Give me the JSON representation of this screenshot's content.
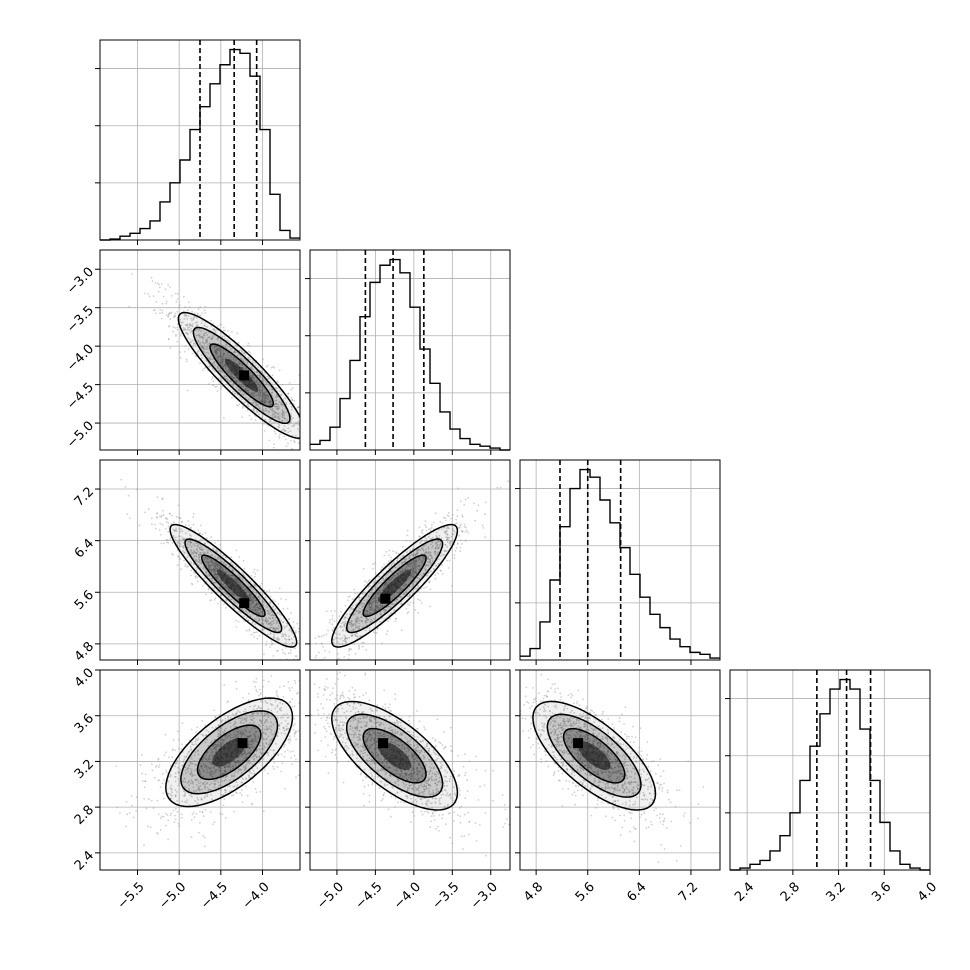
{
  "chart_data": {
    "type": "corner",
    "dimensions": 4,
    "grid": true,
    "colors": {
      "ink": "#000000",
      "grid": "#b0b0b0",
      "density": "#000000",
      "points": "#9a9a9a"
    },
    "params": [
      {
        "range": [
          -5.95,
          -3.55
        ],
        "ticks": [
          -5.5,
          -5.0,
          -4.5,
          -4.0
        ],
        "tick_labels": [
          "−5.5",
          "−5.0",
          "−4.5",
          "−4.0"
        ],
        "quantiles": [
          -4.75,
          -4.34,
          -4.07
        ],
        "hist_max": 1.0,
        "hist": [
          0.0,
          0.005,
          0.02,
          0.035,
          0.06,
          0.1,
          0.2,
          0.3,
          0.42,
          0.58,
          0.7,
          0.82,
          0.92,
          1.0,
          0.98,
          0.86,
          0.58,
          0.24,
          0.05,
          0.01
        ]
      },
      {
        "range": [
          -5.35,
          -2.75
        ],
        "ticks": [
          -5.0,
          -4.5,
          -4.0,
          -3.5,
          -3.0
        ],
        "tick_labels": [
          "−5.0",
          "−4.5",
          "−4.0",
          "−3.5",
          "−3.0"
        ],
        "quantiles": [
          -4.63,
          -4.27,
          -3.87
        ],
        "hist_max": 1.0,
        "hist": [
          0.03,
          0.05,
          0.12,
          0.27,
          0.47,
          0.7,
          0.88,
          0.97,
          1.0,
          0.93,
          0.75,
          0.53,
          0.35,
          0.2,
          0.11,
          0.06,
          0.03,
          0.02,
          0.01,
          0.0
        ]
      },
      {
        "range": [
          4.55,
          7.65
        ],
        "ticks": [
          4.8,
          5.6,
          6.4,
          7.2
        ],
        "tick_labels": [
          "4.8",
          "5.6",
          "6.4",
          "7.2"
        ],
        "quantiles": [
          5.17,
          5.6,
          6.11
        ],
        "hist_max": 1.0,
        "hist": [
          0.02,
          0.06,
          0.2,
          0.42,
          0.7,
          0.9,
          1.0,
          0.96,
          0.84,
          0.72,
          0.59,
          0.45,
          0.33,
          0.24,
          0.17,
          0.11,
          0.07,
          0.04,
          0.03,
          0.01
        ]
      },
      {
        "range": [
          2.25,
          4.0
        ],
        "ticks": [
          2.4,
          2.8,
          3.2,
          3.6,
          4.0
        ],
        "tick_labels": [
          "2.4",
          "2.8",
          "3.2",
          "3.6",
          "4.0"
        ],
        "quantiles": [
          3.01,
          3.27,
          3.48
        ],
        "hist_max": 1.0,
        "hist": [
          0.0,
          0.01,
          0.03,
          0.05,
          0.1,
          0.18,
          0.3,
          0.47,
          0.65,
          0.82,
          0.95,
          1.0,
          0.95,
          0.74,
          0.47,
          0.25,
          0.1,
          0.03,
          0.01,
          0.0
        ]
      }
    ],
    "pairs": [
      {
        "row": 1,
        "col": 0,
        "center": [
          -4.25,
          -4.38
        ],
        "sd": [
          0.4,
          0.43
        ],
        "corr": -0.9,
        "peak": [
          -4.22,
          -4.38
        ]
      },
      {
        "row": 2,
        "col": 0,
        "center": [
          -4.35,
          5.7
        ],
        "sd": [
          0.4,
          0.5
        ],
        "corr": -0.92,
        "peak": [
          -4.22,
          5.43
        ]
      },
      {
        "row": 2,
        "col": 1,
        "center": [
          -4.25,
          5.7
        ],
        "sd": [
          0.43,
          0.5
        ],
        "corr": 0.9,
        "peak": [
          -4.37,
          5.5
        ]
      },
      {
        "row": 3,
        "col": 0,
        "center": [
          -4.4,
          3.28
        ],
        "sd": [
          0.4,
          0.25
        ],
        "corr": 0.65,
        "peak": [
          -4.24,
          3.36
        ]
      },
      {
        "row": 3,
        "col": 1,
        "center": [
          -4.25,
          3.25
        ],
        "sd": [
          0.43,
          0.25
        ],
        "corr": -0.68,
        "peak": [
          -4.4,
          3.36
        ]
      },
      {
        "row": 3,
        "col": 2,
        "center": [
          5.7,
          3.25
        ],
        "sd": [
          0.5,
          0.25
        ],
        "corr": -0.7,
        "peak": [
          5.45,
          3.36
        ]
      }
    ]
  }
}
